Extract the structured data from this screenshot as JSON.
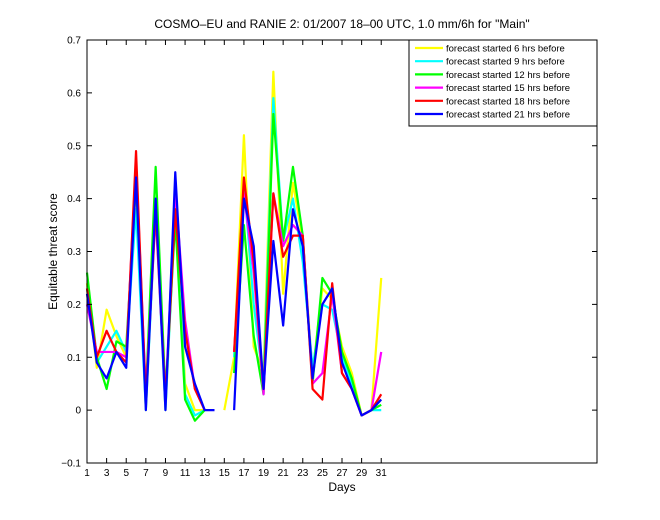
{
  "chart_data": {
    "type": "line",
    "title": "COSMO–EU and RANIE 2: 01/2007 18–00 UTC, 1.0 mm/6h for \"Main\"",
    "xlabel": "Days",
    "ylabel": "Equitable threat score",
    "xlim": [
      1,
      53
    ],
    "ylim": [
      -0.1,
      0.7
    ],
    "xticks": [
      1,
      3,
      5,
      7,
      9,
      11,
      13,
      15,
      17,
      19,
      21,
      23,
      25,
      27,
      29,
      31
    ],
    "yticks": [
      -0.1,
      0,
      0.1,
      0.2,
      0.3,
      0.4,
      0.5,
      0.6,
      0.7
    ],
    "ytick_labels": [
      "−0.1",
      "0",
      "0.1",
      "0.2",
      "0.3",
      "0.4",
      "0.5",
      "0.6",
      "0.7"
    ],
    "legend_position": "top-right",
    "grid": false,
    "series": [
      {
        "name": "forecast started 6 hrs before",
        "color": "#ffff00",
        "values": [
          [
            1,
            0.24
          ],
          [
            2,
            0.08
          ],
          [
            3,
            0.19
          ],
          [
            4,
            0.14
          ],
          [
            5,
            0.1
          ],
          [
            6,
            0.43
          ],
          [
            7,
            0.0
          ],
          [
            8,
            0.4
          ],
          [
            9,
            0.0
          ],
          [
            10,
            0.4
          ],
          [
            11,
            0.05
          ],
          [
            12,
            0.0
          ],
          [
            13,
            0.0
          ],
          null,
          [
            15,
            0.0
          ],
          [
            16,
            0.1
          ],
          [
            17,
            0.52
          ],
          [
            18,
            0.12
          ],
          [
            19,
            0.07
          ],
          [
            20,
            0.64
          ],
          [
            21,
            0.22
          ],
          [
            22,
            0.43
          ],
          [
            23,
            0.32
          ],
          [
            24,
            0.07
          ],
          [
            25,
            0.23
          ],
          [
            26,
            0.21
          ],
          [
            27,
            0.12
          ],
          [
            28,
            0.07
          ],
          [
            29,
            -0.01
          ],
          [
            30,
            0.0
          ],
          [
            31,
            0.25
          ]
        ]
      },
      {
        "name": "forecast started 9 hrs before",
        "color": "#00ffff",
        "values": [
          [
            1,
            0.23
          ],
          [
            2,
            0.09
          ],
          [
            3,
            0.12
          ],
          [
            4,
            0.15
          ],
          [
            5,
            0.11
          ],
          [
            6,
            0.38
          ],
          [
            7,
            0.0
          ],
          [
            8,
            0.38
          ],
          [
            9,
            0.0
          ],
          [
            10,
            0.38
          ],
          [
            11,
            0.03
          ],
          [
            12,
            -0.01
          ],
          [
            13,
            0.0
          ],
          null,
          [
            16,
            0.1
          ],
          [
            17,
            0.43
          ],
          [
            18,
            0.2
          ],
          [
            19,
            0.05
          ],
          [
            20,
            0.59
          ],
          [
            21,
            0.32
          ],
          [
            22,
            0.4
          ],
          [
            23,
            0.28
          ],
          [
            24,
            0.08
          ],
          [
            25,
            0.2
          ],
          [
            26,
            0.19
          ],
          [
            27,
            0.1
          ],
          [
            28,
            0.05
          ],
          [
            29,
            -0.01
          ],
          [
            30,
            0.0
          ],
          [
            31,
            0.0
          ]
        ]
      },
      {
        "name": "forecast started 12 hrs before",
        "color": "#00ff00",
        "values": [
          [
            1,
            0.26
          ],
          [
            2,
            0.1
          ],
          [
            3,
            0.04
          ],
          [
            4,
            0.13
          ],
          [
            5,
            0.12
          ],
          [
            6,
            0.43
          ],
          [
            7,
            0.03
          ],
          [
            8,
            0.46
          ],
          [
            9,
            0.03
          ],
          [
            10,
            0.36
          ],
          [
            11,
            0.02
          ],
          [
            12,
            -0.02
          ],
          [
            13,
            0.0
          ],
          null,
          [
            16,
            0.07
          ],
          [
            17,
            0.35
          ],
          [
            18,
            0.14
          ],
          [
            19,
            0.03
          ],
          [
            20,
            0.56
          ],
          [
            21,
            0.32
          ],
          [
            22,
            0.46
          ],
          [
            23,
            0.33
          ],
          [
            24,
            0.05
          ],
          [
            25,
            0.25
          ],
          [
            26,
            0.22
          ],
          [
            27,
            0.11
          ],
          [
            28,
            0.06
          ],
          [
            29,
            -0.01
          ],
          [
            30,
            0.0
          ],
          [
            31,
            0.01
          ]
        ]
      },
      {
        "name": "forecast started 15 hrs before",
        "color": "#ff00ff",
        "values": [
          [
            1,
            0.2
          ],
          [
            2,
            0.11
          ],
          [
            3,
            0.11
          ],
          [
            4,
            0.11
          ],
          [
            5,
            0.1
          ],
          [
            6,
            0.47
          ],
          [
            7,
            0.03
          ],
          [
            8,
            0.37
          ],
          [
            9,
            0.02
          ],
          [
            10,
            0.42
          ],
          [
            11,
            0.17
          ],
          [
            12,
            0.04
          ],
          [
            13,
            0.0
          ],
          null,
          [
            16,
            0.11
          ],
          [
            17,
            0.41
          ],
          [
            18,
            0.26
          ],
          [
            19,
            0.03
          ],
          [
            20,
            0.41
          ],
          [
            21,
            0.31
          ],
          [
            22,
            0.35
          ],
          [
            23,
            0.33
          ],
          [
            24,
            0.05
          ],
          [
            25,
            0.07
          ],
          [
            26,
            0.22
          ],
          [
            27,
            0.07
          ],
          [
            28,
            0.04
          ],
          [
            29,
            -0.01
          ],
          [
            30,
            0.0
          ],
          [
            31,
            0.11
          ]
        ]
      },
      {
        "name": "forecast started 18 hrs before",
        "color": "#ff0000",
        "values": [
          [
            1,
            0.23
          ],
          [
            2,
            0.1
          ],
          [
            3,
            0.15
          ],
          [
            4,
            0.11
          ],
          [
            5,
            0.09
          ],
          [
            6,
            0.49
          ],
          [
            7,
            0.02
          ],
          [
            8,
            0.38
          ],
          [
            9,
            0.02
          ],
          [
            10,
            0.38
          ],
          [
            11,
            0.15
          ],
          [
            12,
            0.04
          ],
          [
            13,
            0.0
          ],
          null,
          [
            16,
            0.11
          ],
          [
            17,
            0.44
          ],
          [
            18,
            0.28
          ],
          [
            19,
            0.04
          ],
          [
            20,
            0.41
          ],
          [
            21,
            0.29
          ],
          [
            22,
            0.33
          ],
          [
            23,
            0.33
          ],
          [
            24,
            0.04
          ],
          [
            25,
            0.02
          ],
          [
            26,
            0.24
          ],
          [
            27,
            0.07
          ],
          [
            28,
            0.04
          ],
          [
            29,
            -0.01
          ],
          [
            30,
            0.0
          ],
          [
            31,
            0.03
          ]
        ]
      },
      {
        "name": "forecast started 21 hrs before",
        "color": "#0000ff",
        "values": [
          [
            1,
            0.22
          ],
          [
            2,
            0.09
          ],
          [
            3,
            0.06
          ],
          [
            4,
            0.11
          ],
          [
            5,
            0.08
          ],
          [
            6,
            0.44
          ],
          [
            7,
            0.0
          ],
          [
            8,
            0.4
          ],
          [
            9,
            0.0
          ],
          [
            10,
            0.45
          ],
          [
            11,
            0.12
          ],
          [
            12,
            0.05
          ],
          [
            13,
            0.0
          ],
          [
            14,
            0.0
          ],
          null,
          [
            16,
            0.0
          ],
          [
            17,
            0.4
          ],
          [
            18,
            0.31
          ],
          [
            19,
            0.04
          ],
          [
            20,
            0.32
          ],
          [
            21,
            0.16
          ],
          [
            22,
            0.38
          ],
          [
            23,
            0.31
          ],
          [
            24,
            0.06
          ],
          [
            25,
            0.2
          ],
          [
            26,
            0.23
          ],
          [
            27,
            0.09
          ],
          [
            28,
            0.04
          ],
          [
            29,
            -0.01
          ],
          [
            30,
            0.0
          ],
          [
            31,
            0.02
          ]
        ]
      }
    ]
  }
}
